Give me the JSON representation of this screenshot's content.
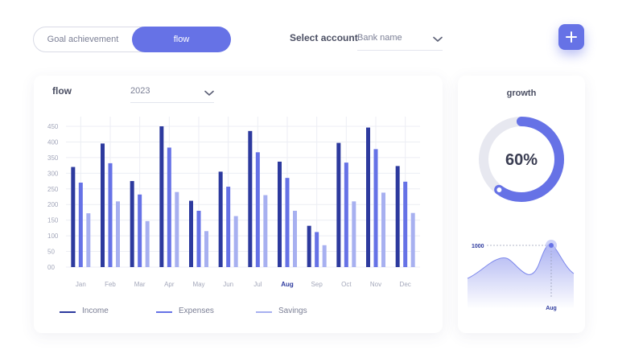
{
  "toggle": {
    "options": [
      "Goal achievement",
      "flow"
    ],
    "selected": "flow"
  },
  "account": {
    "label": "Select account",
    "bank_value": "Bank name"
  },
  "add_button": {
    "icon": "plus-icon"
  },
  "flow_card": {
    "title": "flow",
    "year": "2023"
  },
  "colors": {
    "accent": "#6672e6",
    "income": "#2d3a9e",
    "expenses": "#6672e6",
    "savings": "#a7b0f0"
  },
  "chart_data": {
    "type": "bar",
    "categories": [
      "Jan",
      "Feb",
      "Mar",
      "Apr",
      "May",
      "Jun",
      "Jul",
      "Aug",
      "Sep",
      "Oct",
      "Nov",
      "Dec"
    ],
    "highlighted_category": "Aug",
    "ylim": [
      0,
      450
    ],
    "yticks": [
      "00",
      "50",
      "100",
      "150",
      "200",
      "250",
      "300",
      "350",
      "400",
      "450"
    ],
    "grid": true,
    "legend_position": "bottom",
    "series": [
      {
        "name": "Income",
        "values": [
          320,
          395,
          275,
          450,
          212,
          305,
          435,
          337,
          132,
          397,
          446,
          323
        ]
      },
      {
        "name": "Expenses",
        "values": [
          270,
          332,
          232,
          382,
          180,
          257,
          367,
          285,
          112,
          334,
          377,
          273
        ]
      },
      {
        "name": "Savings",
        "values": [
          172,
          210,
          147,
          240,
          115,
          163,
          230,
          180,
          70,
          210,
          238,
          173
        ]
      }
    ]
  },
  "growth": {
    "title": "growth",
    "percent_label": "60%",
    "percent": 60,
    "peak_value_label": "1000",
    "peak_month_label": "Aug"
  }
}
